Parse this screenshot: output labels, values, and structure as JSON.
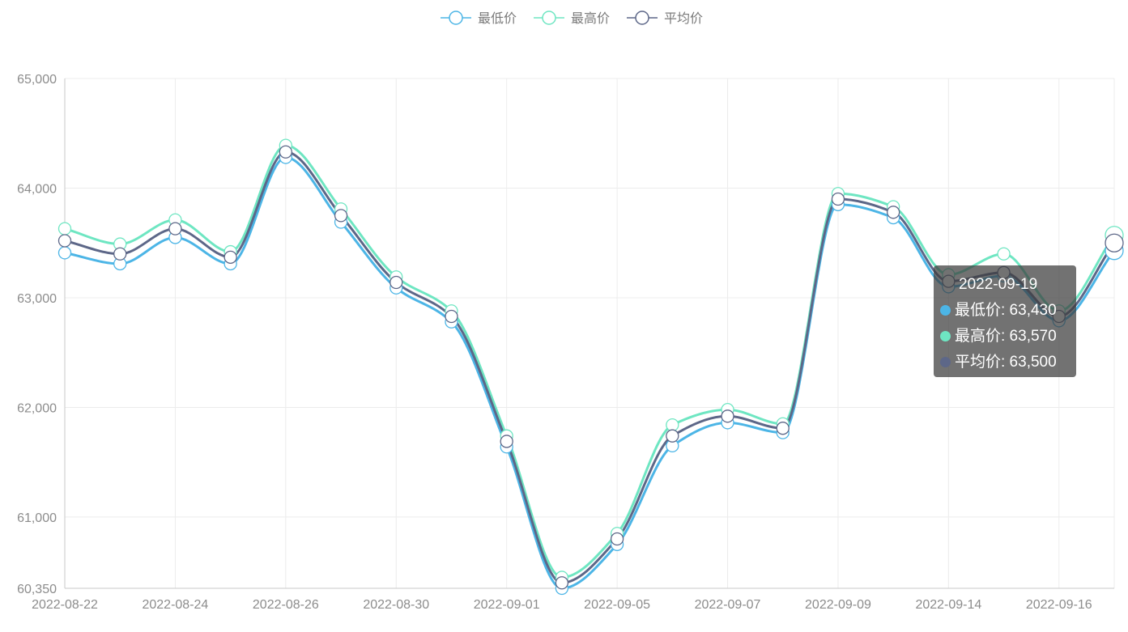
{
  "chart_data": {
    "type": "line",
    "title": "",
    "xlabel": "",
    "ylabel": "",
    "x": [
      "2022-08-22",
      "2022-08-23",
      "2022-08-24",
      "2022-08-25",
      "2022-08-26",
      "2022-08-29",
      "2022-08-30",
      "2022-08-31",
      "2022-09-01",
      "2022-09-02",
      "2022-09-05",
      "2022-09-06",
      "2022-09-07",
      "2022-09-08",
      "2022-09-09",
      "2022-09-13",
      "2022-09-14",
      "2022-09-15",
      "2022-09-16",
      "2022-09-19"
    ],
    "x_tick_labels": [
      "2022-08-22",
      "2022-08-24",
      "2022-08-26",
      "2022-08-30",
      "2022-09-01",
      "2022-09-05",
      "2022-09-07",
      "2022-09-09",
      "2022-09-14",
      "2022-09-16"
    ],
    "y_ticks": [
      60350,
      61000,
      62000,
      63000,
      64000,
      65000
    ],
    "y_tick_labels": [
      "60,350",
      "61,000",
      "62,000",
      "63,000",
      "64,000",
      "65,000"
    ],
    "ylim": [
      60350,
      65000
    ],
    "grid": true,
    "smooth": true,
    "legend_position": "top-center",
    "series": [
      {
        "name": "最低价",
        "color": "#4cb5e6",
        "values": [
          63410,
          63310,
          63550,
          63310,
          64280,
          63690,
          63090,
          62780,
          61640,
          60350,
          60750,
          61650,
          61860,
          61770,
          63850,
          63730,
          63100,
          63200,
          62790,
          63430
        ]
      },
      {
        "name": "最高价",
        "color": "#6ee6c2",
        "values": [
          63630,
          63490,
          63710,
          63420,
          64390,
          63810,
          63190,
          62880,
          61740,
          60450,
          60850,
          61840,
          61980,
          61850,
          63950,
          63830,
          63210,
          63400,
          62880,
          63570
        ]
      },
      {
        "name": "平均价",
        "color": "#5d6788",
        "values": [
          63520,
          63400,
          63630,
          63370,
          64330,
          63750,
          63140,
          62830,
          61690,
          60400,
          60800,
          61740,
          61920,
          61810,
          63900,
          63780,
          63150,
          63230,
          62830,
          63500
        ]
      }
    ]
  },
  "tooltip": {
    "title": "2022-09-19",
    "rows": [
      {
        "label": "最低价: 63,430",
        "color": "#4cb5e6"
      },
      {
        "label": "最高价: 63,570",
        "color": "#6ee6c2"
      },
      {
        "label": "平均价: 63,500",
        "color": "#5d6788"
      }
    ]
  }
}
